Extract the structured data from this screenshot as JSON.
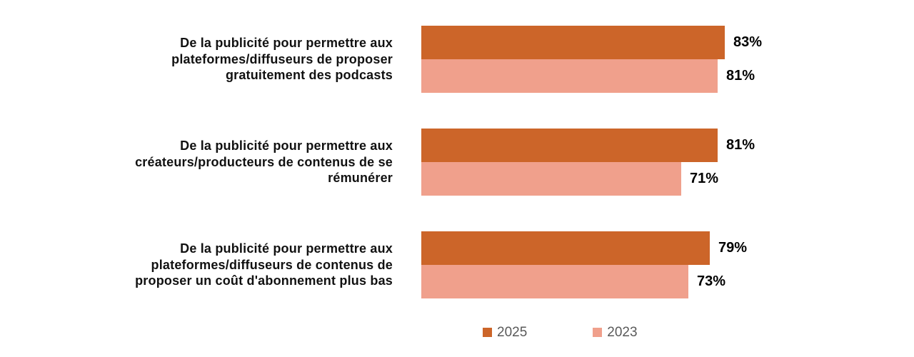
{
  "chart_data": {
    "type": "bar",
    "orientation": "horizontal",
    "title": "",
    "xlabel": "",
    "ylabel": "",
    "xlim": [
      0,
      100
    ],
    "grid": false,
    "legend_position": "bottom",
    "value_suffix": "%",
    "categories": [
      "De la publicité pour permettre aux plateformes/diffuseurs de proposer gratuitement des podcasts",
      "De la publicité pour permettre aux créateurs/producteurs de contenus de se rémunérer",
      "De la publicité pour permettre aux plateformes/diffuseurs de contenus de proposer un coût d'abonnement plus bas"
    ],
    "series": [
      {
        "name": "2025",
        "color": "#CC6529",
        "values": [
          83,
          81,
          79
        ],
        "labels": [
          "83%",
          "81%",
          "79%"
        ]
      },
      {
        "name": "2023",
        "color": "#F0A08C",
        "values": [
          81,
          71,
          73
        ],
        "labels": [
          "81%",
          "71%",
          "73%"
        ]
      }
    ]
  },
  "colors": {
    "background": "#FFFFFF",
    "category_text": "#111111",
    "value_text": "#000000",
    "legend_text": "#595959"
  }
}
